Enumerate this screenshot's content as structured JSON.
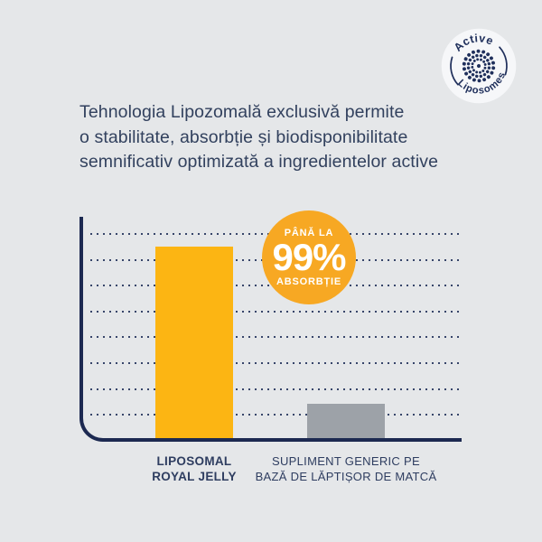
{
  "page": {
    "background_color": "#e5e7e9",
    "accent_navy": "#1c2951"
  },
  "badge": {
    "top_label": "Active",
    "bottom_label": "Liposomes",
    "icon": "liposome-dot-mandala",
    "color": "#20305c"
  },
  "heading": {
    "lines": [
      "Tehnologia Lipozomală exclusivă permite",
      "o stabilitate, absorbție și biodisponibilitate",
      "semnificativ optimizată a ingredientelor active"
    ]
  },
  "callout": {
    "prefix": "PÂNĂ LA",
    "value": "99%",
    "suffix": "ABSORBȚIE",
    "color": "#f7a823",
    "text_color": "#ffffff"
  },
  "chart_data": {
    "type": "bar",
    "title": "",
    "xlabel": "",
    "ylabel": "",
    "categories": [
      "LIPOSOMAL ROYAL JELLY",
      "SUPLIMENT GENERIC PE BAZĂ DE LĂPTIȘOR DE MATCĂ"
    ],
    "values": [
      99,
      19
    ],
    "value_unit": "% absorbție",
    "bar_colors": [
      "#fcb513",
      "#9da2a8"
    ],
    "ylim": [
      0,
      113
    ],
    "grid": {
      "style": "dotted-horizontal",
      "lines": 8,
      "color": "#37456a"
    },
    "legend": "none",
    "axis_color": "#1c2951",
    "xtick_lines": [
      [
        "LIPOSOMAL",
        "ROYAL JELLY"
      ],
      [
        "SUPLIMENT GENERIC PE",
        "BAZĂ DE LĂPTIȘOR DE MATCĂ"
      ]
    ],
    "annotation": "PÂNĂ LA 99% ABSORBȚIE"
  }
}
